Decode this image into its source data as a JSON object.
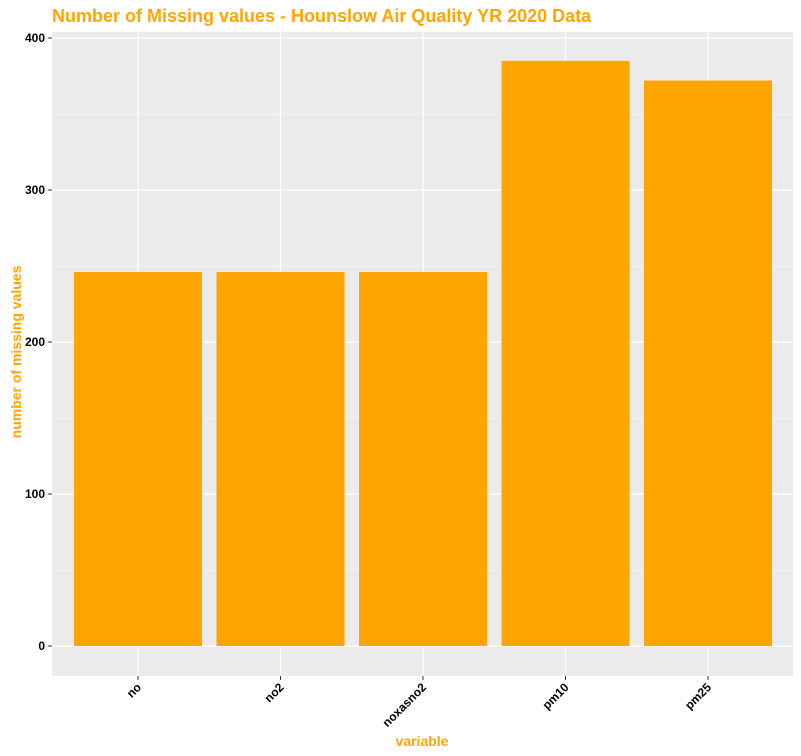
{
  "chart_data": {
    "type": "bar",
    "title": "Number of Missing values - Hounslow Air Quality YR 2020 Data",
    "xlabel": "variable",
    "ylabel": "number of missing values",
    "categories": [
      "no",
      "no2",
      "noxasno2",
      "pm10",
      "pm25"
    ],
    "values": [
      246,
      246,
      246,
      385,
      372
    ],
    "ylim": [
      0,
      400
    ],
    "yticks": [
      0,
      100,
      200,
      300,
      400
    ],
    "grid": true,
    "legend": "none"
  },
  "colors": {
    "bar": "#FFA500",
    "title": "#FFA500",
    "axis_title": "#FFA500",
    "panel": "#EBEBEB",
    "grid_major": "#FFFFFF",
    "grid_minor": "#F5F5F5"
  }
}
